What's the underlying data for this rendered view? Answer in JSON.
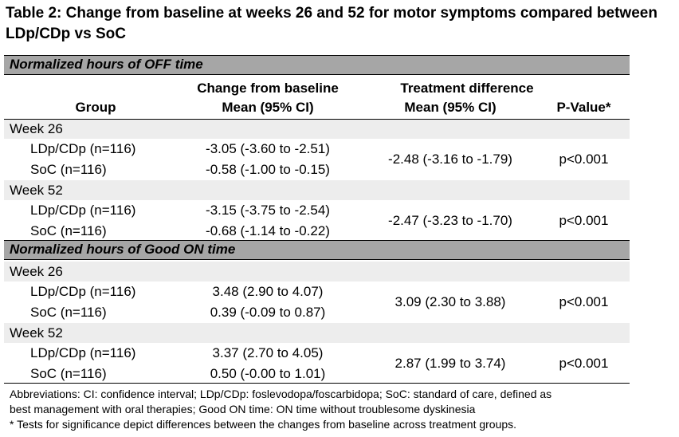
{
  "title": "Table 2: Change from baseline at weeks 26 and 52 for motor symptoms compared between LDp/CDp vs SoC",
  "sections": [
    {
      "label": "Normalized hours of OFF time",
      "weeks": [
        {
          "label": "Week 26",
          "rows": [
            {
              "group": "LDp/CDp (n=116)",
              "change": "-3.05 (-3.60 to -2.51)"
            },
            {
              "group": "SoC (n=116)",
              "change": "-0.58 (-1.00 to -0.15)"
            }
          ],
          "diff": "-2.48 (-3.16 to -1.79)",
          "p": "p<0.001"
        },
        {
          "label": "Week 52",
          "rows": [
            {
              "group": "LDp/CDp (n=116)",
              "change": "-3.15 (-3.75 to -2.54)"
            },
            {
              "group": "SoC (n=116)",
              "change": "-0.68 (-1.14 to -0.22)"
            }
          ],
          "diff": "-2.47 (-3.23 to -1.70)",
          "p": "p<0.001"
        }
      ]
    },
    {
      "label": "Normalized hours of Good ON time",
      "weeks": [
        {
          "label": "Week 26",
          "rows": [
            {
              "group": "LDp/CDp (n=116)",
              "change": "3.48 (2.90 to 4.07)"
            },
            {
              "group": "SoC (n=116)",
              "change": "0.39 (-0.09 to 0.87)"
            }
          ],
          "diff": "3.09 (2.30 to 3.88)",
          "p": "p<0.001"
        },
        {
          "label": "Week 52",
          "rows": [
            {
              "group": "LDp/CDp (n=116)",
              "change": "3.37 (2.70 to 4.05)"
            },
            {
              "group": "SoC (n=116)",
              "change": "0.50 (-0.00 to 1.01)"
            }
          ],
          "diff": "2.87 (1.99 to 3.74)",
          "p": "p<0.001"
        }
      ]
    }
  ],
  "headers": {
    "group": "Group",
    "change_line1": "Change from baseline",
    "change_line2": "Mean (95% CI)",
    "diff_line1": "Treatment difference",
    "diff_line2": "Mean (95% CI)",
    "pvalue": "P-Value*"
  },
  "footnotes": {
    "line1": "Abbreviations: CI: confidence interval; LDp/CDp: foslevodopa/foscarbidopa; SoC: standard of care, defined as",
    "line2": "best management with oral therapies; Good ON time: ON time without troublesome dyskinesia",
    "line3": "* Tests for significance depict differences between the changes from baseline across treatment groups."
  }
}
